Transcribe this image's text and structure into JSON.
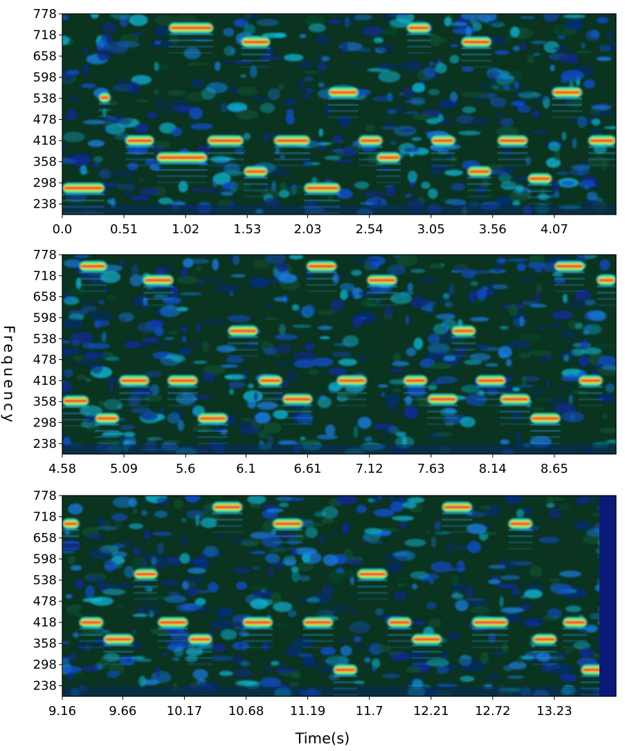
{
  "figure": {
    "ylabel": "Frequency",
    "xlabel": "Time(s)"
  },
  "chart_data": [
    {
      "type": "heatmap",
      "panel": 1,
      "xlim": [
        0.0,
        4.58
      ],
      "ylim": [
        208,
        778
      ],
      "xticks": [
        "0.0",
        "0.51",
        "1.02",
        "1.53",
        "2.03",
        "2.54",
        "3.05",
        "3.56",
        "4.07"
      ],
      "yticks": [
        "778",
        "718",
        "658",
        "598",
        "538",
        "478",
        "418",
        "358",
        "298",
        "238"
      ],
      "notes": [
        {
          "t0": 0.0,
          "t1": 0.35,
          "f": 283
        },
        {
          "t0": 0.3,
          "t1": 0.4,
          "f": 540
        },
        {
          "t0": 0.52,
          "t1": 0.76,
          "f": 418
        },
        {
          "t0": 0.78,
          "t1": 1.2,
          "f": 370
        },
        {
          "t0": 1.2,
          "t1": 1.5,
          "f": 418
        },
        {
          "t0": 0.88,
          "t1": 1.25,
          "f": 738
        },
        {
          "t0": 1.48,
          "t1": 1.72,
          "f": 698
        },
        {
          "t0": 1.5,
          "t1": 1.7,
          "f": 330
        },
        {
          "t0": 1.75,
          "t1": 2.05,
          "f": 418
        },
        {
          "t0": 2.0,
          "t1": 2.3,
          "f": 283
        },
        {
          "t0": 2.2,
          "t1": 2.45,
          "f": 555
        },
        {
          "t0": 2.45,
          "t1": 2.65,
          "f": 418
        },
        {
          "t0": 2.6,
          "t1": 2.8,
          "f": 370
        },
        {
          "t0": 2.85,
          "t1": 3.05,
          "f": 738
        },
        {
          "t0": 3.05,
          "t1": 3.25,
          "f": 418
        },
        {
          "t0": 3.3,
          "t1": 3.55,
          "f": 698
        },
        {
          "t0": 3.35,
          "t1": 3.55,
          "f": 330
        },
        {
          "t0": 3.6,
          "t1": 3.85,
          "f": 418
        },
        {
          "t0": 3.85,
          "t1": 4.05,
          "f": 310
        },
        {
          "t0": 4.05,
          "t1": 4.3,
          "f": 555
        },
        {
          "t0": 4.35,
          "t1": 4.58,
          "f": 418
        }
      ]
    },
    {
      "type": "heatmap",
      "panel": 2,
      "xlim": [
        4.58,
        9.16
      ],
      "ylim": [
        208,
        778
      ],
      "xticks": [
        "4.58",
        "5.09",
        "5.6",
        "6.1",
        "6.61",
        "7.12",
        "7.63",
        "8.14",
        "8.65"
      ],
      "yticks": [
        "778",
        "718",
        "658",
        "598",
        "538",
        "478",
        "418",
        "358",
        "298",
        "238"
      ],
      "notes": [
        {
          "t0": 4.58,
          "t1": 4.8,
          "f": 360
        },
        {
          "t0": 4.72,
          "t1": 4.95,
          "f": 745
        },
        {
          "t0": 4.85,
          "t1": 5.05,
          "f": 310
        },
        {
          "t0": 5.05,
          "t1": 5.3,
          "f": 418
        },
        {
          "t0": 5.25,
          "t1": 5.5,
          "f": 705
        },
        {
          "t0": 5.45,
          "t1": 5.7,
          "f": 418
        },
        {
          "t0": 5.7,
          "t1": 5.95,
          "f": 310
        },
        {
          "t0": 5.95,
          "t1": 6.2,
          "f": 560
        },
        {
          "t0": 6.2,
          "t1": 6.4,
          "f": 418
        },
        {
          "t0": 6.4,
          "t1": 6.65,
          "f": 365
        },
        {
          "t0": 6.6,
          "t1": 6.85,
          "f": 745
        },
        {
          "t0": 6.85,
          "t1": 7.1,
          "f": 418
        },
        {
          "t0": 7.1,
          "t1": 7.35,
          "f": 705
        },
        {
          "t0": 7.4,
          "t1": 7.6,
          "f": 418
        },
        {
          "t0": 7.6,
          "t1": 7.85,
          "f": 365
        },
        {
          "t0": 7.8,
          "t1": 8.0,
          "f": 560
        },
        {
          "t0": 8.0,
          "t1": 8.25,
          "f": 418
        },
        {
          "t0": 8.2,
          "t1": 8.45,
          "f": 365
        },
        {
          "t0": 8.45,
          "t1": 8.7,
          "f": 310
        },
        {
          "t0": 8.65,
          "t1": 8.9,
          "f": 745
        },
        {
          "t0": 8.85,
          "t1": 9.05,
          "f": 418
        },
        {
          "t0": 9.0,
          "t1": 9.16,
          "f": 705
        }
      ]
    },
    {
      "type": "heatmap",
      "panel": 3,
      "xlim": [
        9.16,
        13.74
      ],
      "ylim": [
        208,
        778
      ],
      "xticks": [
        "9.16",
        "9.66",
        "10.17",
        "10.68",
        "11.19",
        "11.7",
        "12.21",
        "12.72",
        "13.23"
      ],
      "yticks": [
        "778",
        "718",
        "658",
        "598",
        "538",
        "478",
        "418",
        "358",
        "298",
        "238"
      ],
      "notes": [
        {
          "t0": 9.16,
          "t1": 9.3,
          "f": 698
        },
        {
          "t0": 9.3,
          "t1": 9.5,
          "f": 418
        },
        {
          "t0": 9.5,
          "t1": 9.75,
          "f": 370
        },
        {
          "t0": 9.75,
          "t1": 9.95,
          "f": 555
        },
        {
          "t0": 9.95,
          "t1": 10.2,
          "f": 418
        },
        {
          "t0": 10.2,
          "t1": 10.4,
          "f": 370
        },
        {
          "t0": 10.4,
          "t1": 10.65,
          "f": 745
        },
        {
          "t0": 10.65,
          "t1": 10.9,
          "f": 418
        },
        {
          "t0": 10.9,
          "t1": 11.15,
          "f": 698
        },
        {
          "t0": 11.15,
          "t1": 11.4,
          "f": 418
        },
        {
          "t0": 11.4,
          "t1": 11.6,
          "f": 283
        },
        {
          "t0": 11.6,
          "t1": 11.85,
          "f": 555
        },
        {
          "t0": 11.85,
          "t1": 12.05,
          "f": 418
        },
        {
          "t0": 12.05,
          "t1": 12.3,
          "f": 370
        },
        {
          "t0": 12.3,
          "t1": 12.55,
          "f": 745
        },
        {
          "t0": 12.55,
          "t1": 12.85,
          "f": 418
        },
        {
          "t0": 12.85,
          "t1": 13.05,
          "f": 698
        },
        {
          "t0": 13.05,
          "t1": 13.25,
          "f": 370
        },
        {
          "t0": 13.3,
          "t1": 13.5,
          "f": 418
        },
        {
          "t0": 13.45,
          "t1": 13.65,
          "f": 283
        }
      ]
    }
  ]
}
